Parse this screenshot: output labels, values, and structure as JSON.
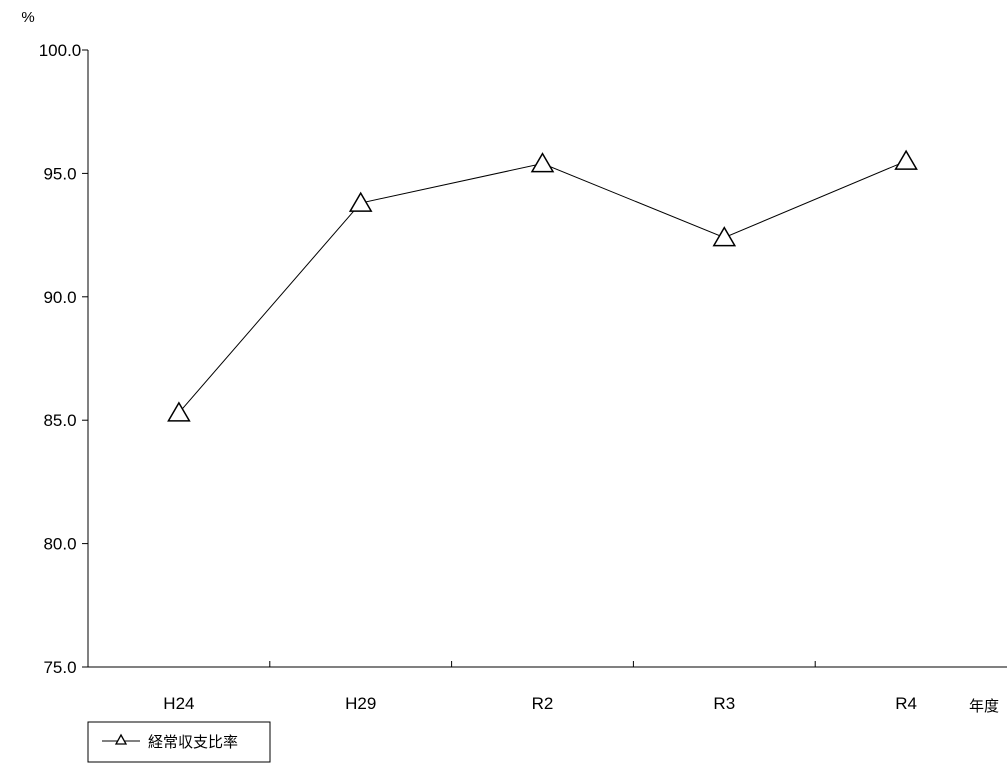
{
  "chart_data": {
    "type": "line",
    "title": "",
    "ylabel": "%",
    "xlabel": "年度",
    "categories": [
      "H24",
      "H29",
      "R2",
      "R3",
      "R4"
    ],
    "ylim": [
      75.0,
      100.0
    ],
    "yticks": [
      "100.0",
      "95.0",
      "90.0",
      "85.0",
      "80.0",
      "75.0"
    ],
    "grid": false,
    "legend_position": "bottom-left",
    "series": [
      {
        "name": "経常収支比率",
        "marker": "triangle-open",
        "color": "#000000",
        "values": [
          85.3,
          93.8,
          95.4,
          92.4,
          95.5
        ]
      }
    ]
  }
}
